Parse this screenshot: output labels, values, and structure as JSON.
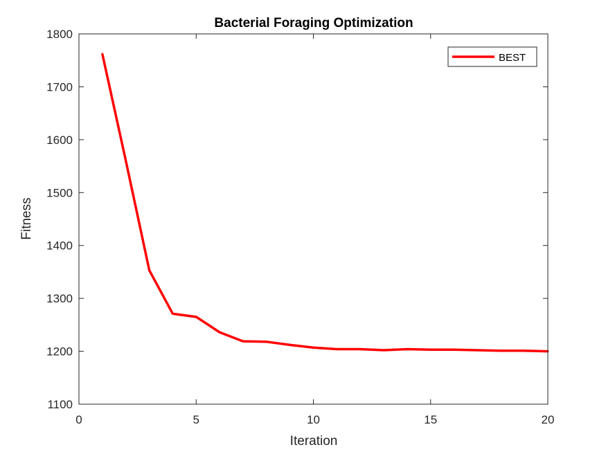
{
  "chart_data": {
    "type": "line",
    "title": "Bacterial Foraging Optimization",
    "xlabel": "Iteration",
    "ylabel": "Fitness",
    "xlim": [
      0,
      20
    ],
    "ylim": [
      1100,
      1800
    ],
    "xticks": [
      0,
      5,
      10,
      15,
      20
    ],
    "yticks": [
      1100,
      1200,
      1300,
      1400,
      1500,
      1600,
      1700,
      1800
    ],
    "grid": false,
    "legend_position": "top-right",
    "series": [
      {
        "name": "BEST",
        "color": "#ff0000",
        "x": [
          1,
          2,
          3,
          4,
          5,
          6,
          7,
          8,
          9,
          10,
          11,
          12,
          13,
          14,
          15,
          16,
          17,
          18,
          19,
          20
        ],
        "values": [
          1762,
          1560,
          1353,
          1271,
          1265,
          1236,
          1219,
          1218,
          1212,
          1207,
          1204,
          1204,
          1202,
          1204,
          1203,
          1203,
          1202,
          1201,
          1201,
          1200
        ]
      }
    ]
  }
}
